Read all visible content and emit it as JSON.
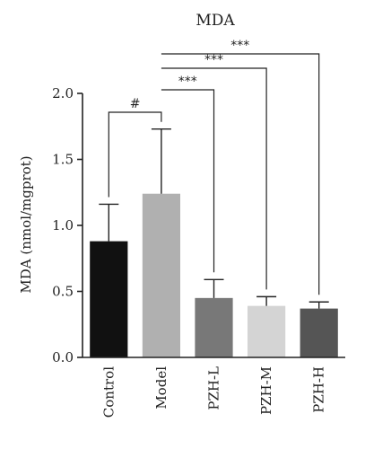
{
  "chart_data": {
    "type": "bar",
    "title": "MDA",
    "ylabel": "MDA (nmol/mgprot)",
    "xlabel": "",
    "ylim": [
      0,
      2.0
    ],
    "yticks": [
      "0.0",
      "0.5",
      "1.0",
      "1.5",
      "2.0"
    ],
    "categories": [
      "Control",
      "Model",
      "PZH-L",
      "PZH-M",
      "PZH-H"
    ],
    "values": [
      0.88,
      1.24,
      0.45,
      0.39,
      0.37
    ],
    "errors": [
      0.28,
      0.49,
      0.14,
      0.07,
      0.05
    ],
    "colors": [
      "#111111",
      "#b0b0b0",
      "#787878",
      "#d4d4d4",
      "#555555"
    ],
    "annotations": [
      {
        "from": "Control",
        "to": "Model",
        "label": "#"
      },
      {
        "from": "Model",
        "to": "PZH-L",
        "label": "***"
      },
      {
        "from": "Model",
        "to": "PZH-M",
        "label": "***"
      },
      {
        "from": "Model",
        "to": "PZH-H",
        "label": "***"
      }
    ]
  }
}
